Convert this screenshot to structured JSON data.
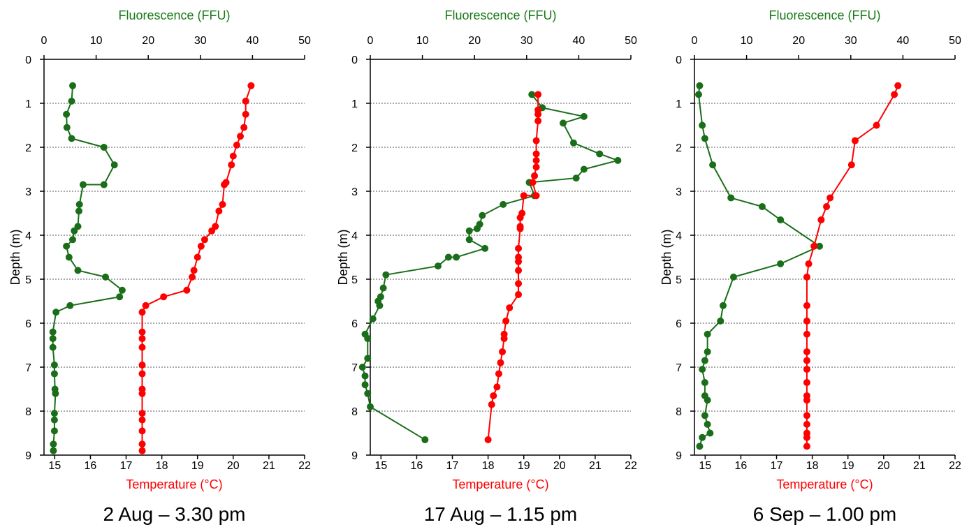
{
  "colors": {
    "fluorescence": "#1a6e1a",
    "temperature": "#ff0000",
    "axis": "#000000",
    "grid": "#555555"
  },
  "chart_data": [
    {
      "type": "line",
      "caption": "2 Aug – 3.30 pm",
      "top_axis_label": "Fluorescence (FFU)",
      "bottom_axis_label": "Temperature (°C)",
      "ylabel": "Depth (m)",
      "fluorescence_range": [
        0,
        50
      ],
      "fluorescence_ticks": [
        0,
        10,
        20,
        30,
        40,
        50
      ],
      "temperature_range": [
        14.7,
        22
      ],
      "temperature_ticks": [
        15,
        16,
        17,
        18,
        19,
        20,
        21,
        22
      ],
      "depth_range": [
        0,
        9
      ],
      "depth_ticks": [
        0,
        1,
        2,
        3,
        4,
        5,
        6,
        7,
        8,
        9
      ],
      "grid": "horizontal dotted",
      "series": [
        {
          "name": "Fluorescence",
          "axis": "top",
          "points": [
            [
              5.5,
              0.6
            ],
            [
              5.3,
              0.95
            ],
            [
              4.3,
              1.25
            ],
            [
              4.4,
              1.55
            ],
            [
              5.3,
              1.8
            ],
            [
              11.5,
              2.0
            ],
            [
              13.5,
              2.4
            ],
            [
              11.5,
              2.85
            ],
            [
              7.5,
              2.85
            ],
            [
              6.8,
              3.3
            ],
            [
              6.7,
              3.45
            ],
            [
              6.5,
              3.8
            ],
            [
              5.8,
              3.9
            ],
            [
              5.5,
              4.1
            ],
            [
              4.3,
              4.25
            ],
            [
              4.8,
              4.5
            ],
            [
              6.5,
              4.8
            ],
            [
              11.8,
              4.95
            ],
            [
              15.0,
              5.25
            ],
            [
              14.5,
              5.4
            ],
            [
              5.0,
              5.6
            ],
            [
              2.3,
              5.75
            ],
            [
              1.7,
              6.2
            ],
            [
              1.7,
              6.35
            ],
            [
              1.7,
              6.55
            ],
            [
              2.0,
              6.95
            ],
            [
              2.0,
              7.15
            ],
            [
              2.1,
              7.5
            ],
            [
              2.2,
              7.6
            ],
            [
              2.0,
              8.05
            ],
            [
              2.0,
              8.2
            ],
            [
              2.0,
              8.45
            ],
            [
              1.8,
              8.75
            ],
            [
              1.8,
              8.9
            ]
          ]
        },
        {
          "name": "Temperature",
          "axis": "bottom",
          "points": [
            [
              20.5,
              0.6
            ],
            [
              20.35,
              0.95
            ],
            [
              20.35,
              1.25
            ],
            [
              20.3,
              1.55
            ],
            [
              20.2,
              1.75
            ],
            [
              20.1,
              1.95
            ],
            [
              20.0,
              2.2
            ],
            [
              19.95,
              2.4
            ],
            [
              19.8,
              2.8
            ],
            [
              19.75,
              2.85
            ],
            [
              19.7,
              3.3
            ],
            [
              19.6,
              3.45
            ],
            [
              19.5,
              3.8
            ],
            [
              19.4,
              3.9
            ],
            [
              19.2,
              4.1
            ],
            [
              19.1,
              4.25
            ],
            [
              19.0,
              4.5
            ],
            [
              18.9,
              4.8
            ],
            [
              18.85,
              4.95
            ],
            [
              18.7,
              5.25
            ],
            [
              18.05,
              5.4
            ],
            [
              17.55,
              5.6
            ],
            [
              17.45,
              5.75
            ],
            [
              17.45,
              6.2
            ],
            [
              17.45,
              6.35
            ],
            [
              17.45,
              6.55
            ],
            [
              17.45,
              6.95
            ],
            [
              17.45,
              7.15
            ],
            [
              17.45,
              7.5
            ],
            [
              17.45,
              7.6
            ],
            [
              17.45,
              8.05
            ],
            [
              17.45,
              8.2
            ],
            [
              17.45,
              8.45
            ],
            [
              17.45,
              8.75
            ],
            [
              17.45,
              8.9
            ]
          ]
        }
      ]
    },
    {
      "type": "line",
      "caption": "17 Aug – 1.15 pm",
      "top_axis_label": "Fluorescence (FFU)",
      "bottom_axis_label": "Temperature (°C)",
      "ylabel": "Depth (m)",
      "fluorescence_range": [
        0,
        50
      ],
      "fluorescence_ticks": [
        0,
        10,
        20,
        30,
        40,
        50
      ],
      "temperature_range": [
        14.7,
        22
      ],
      "temperature_ticks": [
        15,
        16,
        17,
        18,
        19,
        20,
        21,
        22
      ],
      "depth_range": [
        0,
        9
      ],
      "depth_ticks": [
        0,
        1,
        2,
        3,
        4,
        5,
        6,
        7,
        8,
        9
      ],
      "grid": "horizontal dotted",
      "series": [
        {
          "name": "Fluorescence",
          "axis": "top",
          "points": [
            [
              31.0,
              0.8
            ],
            [
              33.0,
              1.1
            ],
            [
              41.0,
              1.3
            ],
            [
              37.0,
              1.45
            ],
            [
              39.0,
              1.9
            ],
            [
              44.0,
              2.15
            ],
            [
              47.5,
              2.3
            ],
            [
              41.0,
              2.5
            ],
            [
              39.5,
              2.7
            ],
            [
              30.5,
              2.8
            ],
            [
              31.5,
              3.1
            ],
            [
              25.5,
              3.3
            ],
            [
              21.5,
              3.55
            ],
            [
              21.0,
              3.75
            ],
            [
              20.5,
              3.85
            ],
            [
              19.0,
              3.9
            ],
            [
              19.0,
              4.1
            ],
            [
              22.0,
              4.3
            ],
            [
              16.5,
              4.5
            ],
            [
              15.0,
              4.5
            ],
            [
              13.0,
              4.7
            ],
            [
              3.0,
              4.9
            ],
            [
              2.5,
              5.2
            ],
            [
              2.0,
              5.4
            ],
            [
              1.5,
              5.5
            ],
            [
              1.8,
              5.6
            ],
            [
              0.5,
              5.9
            ],
            [
              -1.0,
              6.25
            ],
            [
              -0.5,
              6.35
            ],
            [
              -0.5,
              6.8
            ],
            [
              -1.5,
              7.0
            ],
            [
              -1.0,
              7.2
            ],
            [
              -1.0,
              7.4
            ],
            [
              -0.5,
              7.6
            ],
            [
              0,
              7.9
            ],
            [
              10.5,
              8.65
            ]
          ]
        },
        {
          "name": "Temperature",
          "axis": "bottom",
          "points": [
            [
              19.4,
              0.8
            ],
            [
              19.4,
              1.15
            ],
            [
              19.4,
              1.25
            ],
            [
              19.4,
              1.4
            ],
            [
              19.35,
              1.85
            ],
            [
              19.35,
              2.15
            ],
            [
              19.35,
              2.3
            ],
            [
              19.35,
              2.45
            ],
            [
              19.3,
              2.65
            ],
            [
              19.25,
              2.8
            ],
            [
              19.35,
              3.1
            ],
            [
              19.0,
              3.1
            ],
            [
              18.95,
              3.5
            ],
            [
              18.9,
              3.6
            ],
            [
              18.9,
              3.8
            ],
            [
              18.9,
              3.85
            ],
            [
              18.85,
              4.3
            ],
            [
              18.85,
              4.5
            ],
            [
              18.85,
              4.6
            ],
            [
              18.85,
              4.8
            ],
            [
              18.85,
              5.1
            ],
            [
              18.85,
              5.35
            ],
            [
              18.6,
              5.65
            ],
            [
              18.5,
              5.95
            ],
            [
              18.45,
              6.25
            ],
            [
              18.45,
              6.35
            ],
            [
              18.4,
              6.65
            ],
            [
              18.35,
              6.9
            ],
            [
              18.3,
              7.15
            ],
            [
              18.25,
              7.45
            ],
            [
              18.15,
              7.65
            ],
            [
              18.1,
              7.85
            ],
            [
              18.0,
              8.65
            ]
          ]
        }
      ]
    },
    {
      "type": "line",
      "caption": "6 Sep – 1.00 pm",
      "top_axis_label": "Fluorescence (FFU)",
      "bottom_axis_label": "Temperature (°C)",
      "ylabel": "Depth (m)",
      "fluorescence_range": [
        0,
        50
      ],
      "fluorescence_ticks": [
        0,
        10,
        20,
        30,
        40,
        50
      ],
      "temperature_range": [
        14.7,
        22
      ],
      "temperature_ticks": [
        15,
        16,
        17,
        18,
        19,
        20,
        21,
        22
      ],
      "depth_range": [
        0,
        9
      ],
      "depth_ticks": [
        0,
        1,
        2,
        3,
        4,
        5,
        6,
        7,
        8,
        9
      ],
      "grid": "horizontal dotted",
      "series": [
        {
          "name": "Fluorescence",
          "axis": "top",
          "points": [
            [
              1.0,
              0.6
            ],
            [
              0.8,
              0.8
            ],
            [
              1.5,
              1.5
            ],
            [
              2.0,
              1.8
            ],
            [
              3.5,
              2.4
            ],
            [
              7.0,
              3.15
            ],
            [
              13.0,
              3.35
            ],
            [
              16.5,
              3.65
            ],
            [
              24.0,
              4.25
            ],
            [
              16.5,
              4.65
            ],
            [
              7.5,
              4.95
            ],
            [
              5.5,
              5.6
            ],
            [
              5.0,
              5.95
            ],
            [
              2.5,
              6.25
            ],
            [
              2.5,
              6.65
            ],
            [
              2.0,
              6.85
            ],
            [
              1.5,
              7.05
            ],
            [
              2.0,
              7.35
            ],
            [
              2.0,
              7.65
            ],
            [
              2.5,
              7.75
            ],
            [
              2.0,
              8.1
            ],
            [
              2.5,
              8.3
            ],
            [
              3.0,
              8.5
            ],
            [
              1.5,
              8.6
            ],
            [
              1.0,
              8.8
            ]
          ]
        },
        {
          "name": "Temperature",
          "axis": "bottom",
          "points": [
            [
              20.4,
              0.6
            ],
            [
              20.3,
              0.8
            ],
            [
              19.8,
              1.5
            ],
            [
              19.2,
              1.85
            ],
            [
              19.1,
              2.4
            ],
            [
              18.5,
              3.15
            ],
            [
              18.4,
              3.35
            ],
            [
              18.25,
              3.65
            ],
            [
              18.05,
              4.25
            ],
            [
              17.9,
              4.65
            ],
            [
              17.85,
              4.95
            ],
            [
              17.85,
              5.6
            ],
            [
              17.85,
              5.95
            ],
            [
              17.85,
              6.25
            ],
            [
              17.85,
              6.65
            ],
            [
              17.85,
              6.85
            ],
            [
              17.85,
              7.05
            ],
            [
              17.85,
              7.35
            ],
            [
              17.85,
              7.65
            ],
            [
              17.85,
              7.75
            ],
            [
              17.85,
              8.1
            ],
            [
              17.85,
              8.3
            ],
            [
              17.85,
              8.5
            ],
            [
              17.85,
              8.6
            ],
            [
              17.85,
              8.8
            ]
          ]
        }
      ]
    }
  ]
}
